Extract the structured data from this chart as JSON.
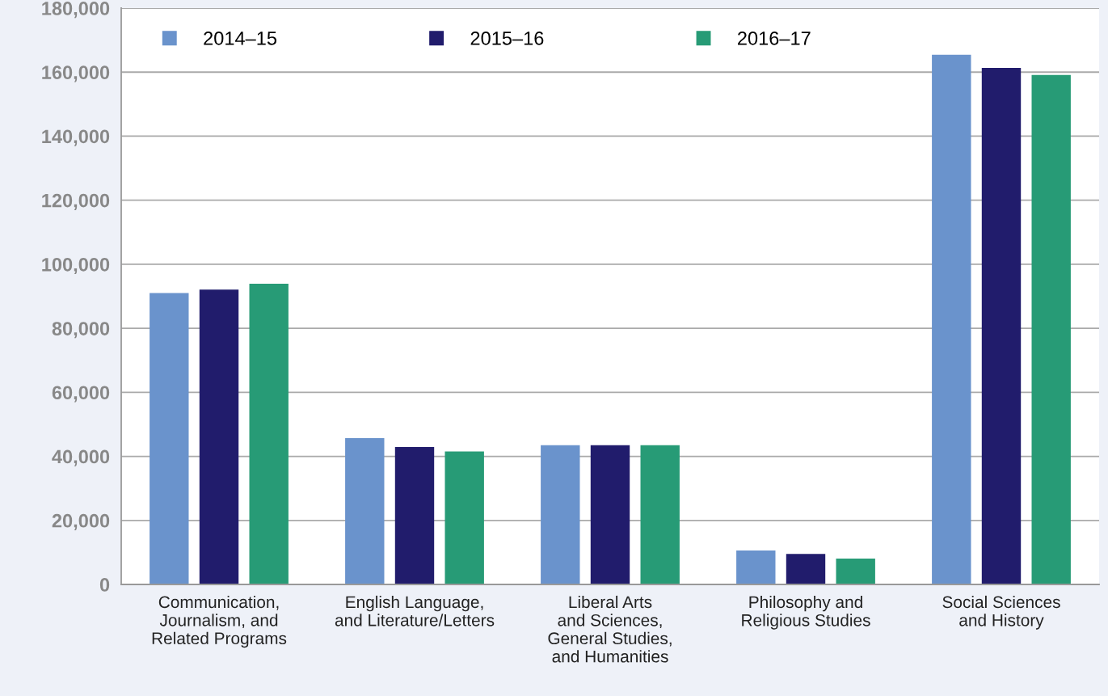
{
  "chart_data": {
    "type": "bar",
    "categories": [
      "Communication,\nJournalism, and\nRelated Programs",
      "English Language,\nand Literature/Letters",
      "Liberal Arts\nand Sciences,\nGeneral Studies,\nand Humanities",
      "Philosophy and\nReligious Studies",
      "Social Sciences\nand History"
    ],
    "series": [
      {
        "name": "2014–15",
        "color": "#6a93cc",
        "values": [
          91000,
          45700,
          43500,
          10600,
          165400
        ]
      },
      {
        "name": "2015–16",
        "color": "#211c6c",
        "values": [
          92100,
          42900,
          43500,
          9500,
          161300
        ]
      },
      {
        "name": "2016–17",
        "color": "#279b76",
        "values": [
          93900,
          41500,
          43500,
          8100,
          159100
        ]
      }
    ],
    "ylim": [
      0,
      180000
    ],
    "yticks": [
      {
        "value": 0,
        "label": "0"
      },
      {
        "value": 20000,
        "label": "20,000"
      },
      {
        "value": 40000,
        "label": "40,000"
      },
      {
        "value": 60000,
        "label": "60,000"
      },
      {
        "value": 80000,
        "label": "80,000"
      },
      {
        "value": 100000,
        "label": "100,000"
      },
      {
        "value": 120000,
        "label": "120,000"
      },
      {
        "value": 140000,
        "label": "140,000"
      },
      {
        "value": 160000,
        "label": "160,000"
      },
      {
        "value": 180000,
        "label": "180,000"
      }
    ],
    "grid": "y",
    "legend": "top left"
  }
}
